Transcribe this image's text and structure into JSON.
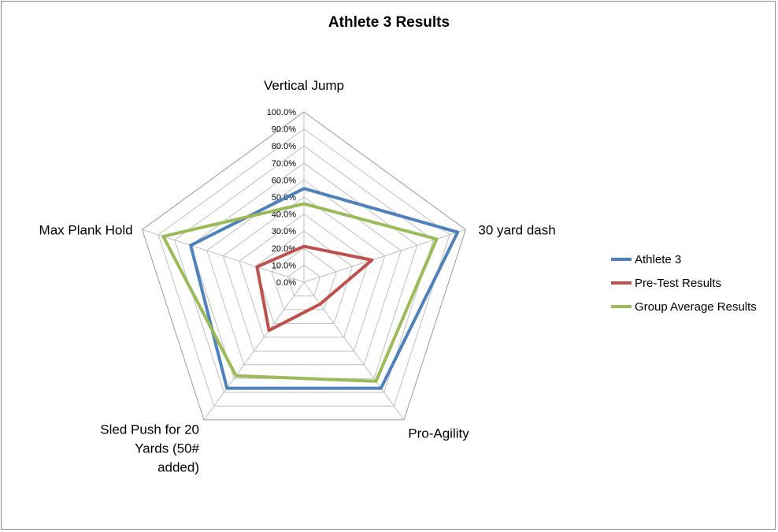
{
  "chart_data": {
    "type": "radar",
    "title": "Athlete 3 Results",
    "categories": [
      "Vertical Jump",
      "30 yard dash",
      "Pro-Agility",
      "Sled Push for 20 Yards (50# added)",
      "Max Plank Hold"
    ],
    "radial_ticks": [
      "0.0%",
      "10.0%",
      "20.0%",
      "30.0%",
      "40.0%",
      "50.0%",
      "60.0%",
      "70.0%",
      "80.0%",
      "90.0%",
      "100.0%"
    ],
    "rlim": [
      0,
      100
    ],
    "grid": true,
    "legend_position": "right",
    "series": [
      {
        "name": "Athlete 3",
        "color": "#4f81bd",
        "values": [
          55,
          95,
          77,
          77,
          70
        ]
      },
      {
        "name": "Pre-Test Results",
        "color": "#c0504d",
        "values": [
          21,
          42,
          16,
          35,
          29
        ]
      },
      {
        "name": "Group Average Results",
        "color": "#9bbb59",
        "values": [
          46,
          82,
          72,
          68,
          87
        ]
      }
    ]
  }
}
